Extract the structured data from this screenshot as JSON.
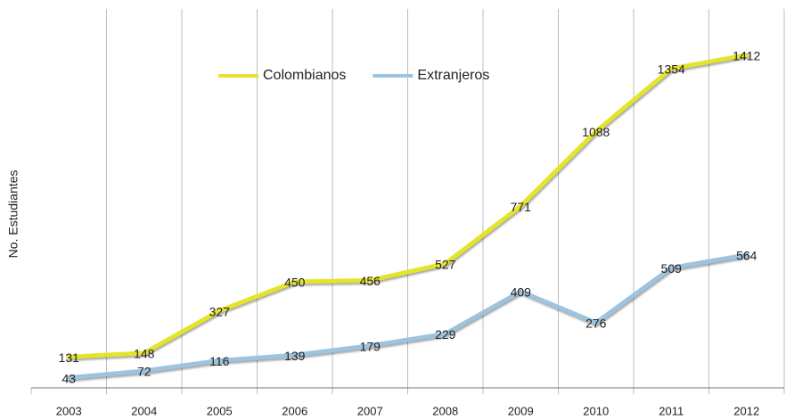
{
  "chart_data": {
    "type": "line",
    "y_label": "No. Estudiantes",
    "categories": [
      "2003",
      "2004",
      "2005",
      "2006",
      "2007",
      "2008",
      "2009",
      "2010",
      "2011",
      "2012"
    ],
    "series": [
      {
        "name": "Colombianos",
        "color": "#e4e42c",
        "values": [
          131,
          148,
          327,
          450,
          456,
          527,
          771,
          1088,
          1354,
          1412
        ]
      },
      {
        "name": "Extranjeros",
        "color": "#9cc3e0",
        "values": [
          43,
          72,
          116,
          139,
          179,
          229,
          409,
          276,
          509,
          564
        ]
      }
    ],
    "ylim": [
      0,
      1600
    ],
    "legend": "top"
  }
}
